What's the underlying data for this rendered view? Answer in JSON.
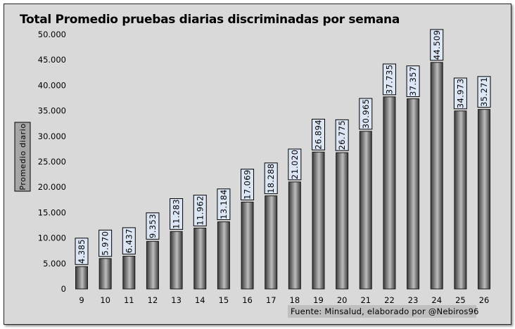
{
  "chart_data": {
    "type": "bar",
    "title": "Total Promedio pruebas diarias discriminadas por semana",
    "ylabel": "Promedio diario",
    "xlabel": "",
    "categories": [
      "9",
      "10",
      "11",
      "12",
      "13",
      "14",
      "15",
      "16",
      "17",
      "18",
      "19",
      "20",
      "21",
      "22",
      "23",
      "24",
      "25",
      "26"
    ],
    "values": [
      4385,
      5970,
      6437,
      9353,
      11283,
      11962,
      13184,
      17069,
      18288,
      21020,
      26894,
      26775,
      30965,
      37735,
      37357,
      44509,
      34973,
      35271
    ],
    "data_labels": [
      "4.385",
      "5.970",
      "6.437",
      "9.353",
      "11.283",
      "11.962",
      "13.184",
      "17.069",
      "18.288",
      "21.020",
      "26.894",
      "26.775",
      "30.965",
      "37.735",
      "37.357",
      "44.509",
      "34.973",
      "35.271"
    ],
    "yticks": [
      0,
      5000,
      10000,
      15000,
      20000,
      25000,
      30000,
      35000,
      40000,
      45000,
      50000
    ],
    "ytick_labels": [
      "0",
      "5.000",
      "10.000",
      "15.000",
      "20.000",
      "25.000",
      "30.000",
      "35.000",
      "40.000",
      "45.000",
      "50.000"
    ],
    "ylim": [
      0,
      50000
    ],
    "grid": false,
    "legend": "none",
    "source": "Fuente: Minsalud,  elaborado  por  @Nebiros96",
    "colors": {
      "background": "#d9d9d9",
      "bar_dark": "#3a3a3a",
      "bar_light": "#bdbdbd",
      "label_box": "#dde6f5",
      "source_box": "#bfbfbf"
    }
  }
}
